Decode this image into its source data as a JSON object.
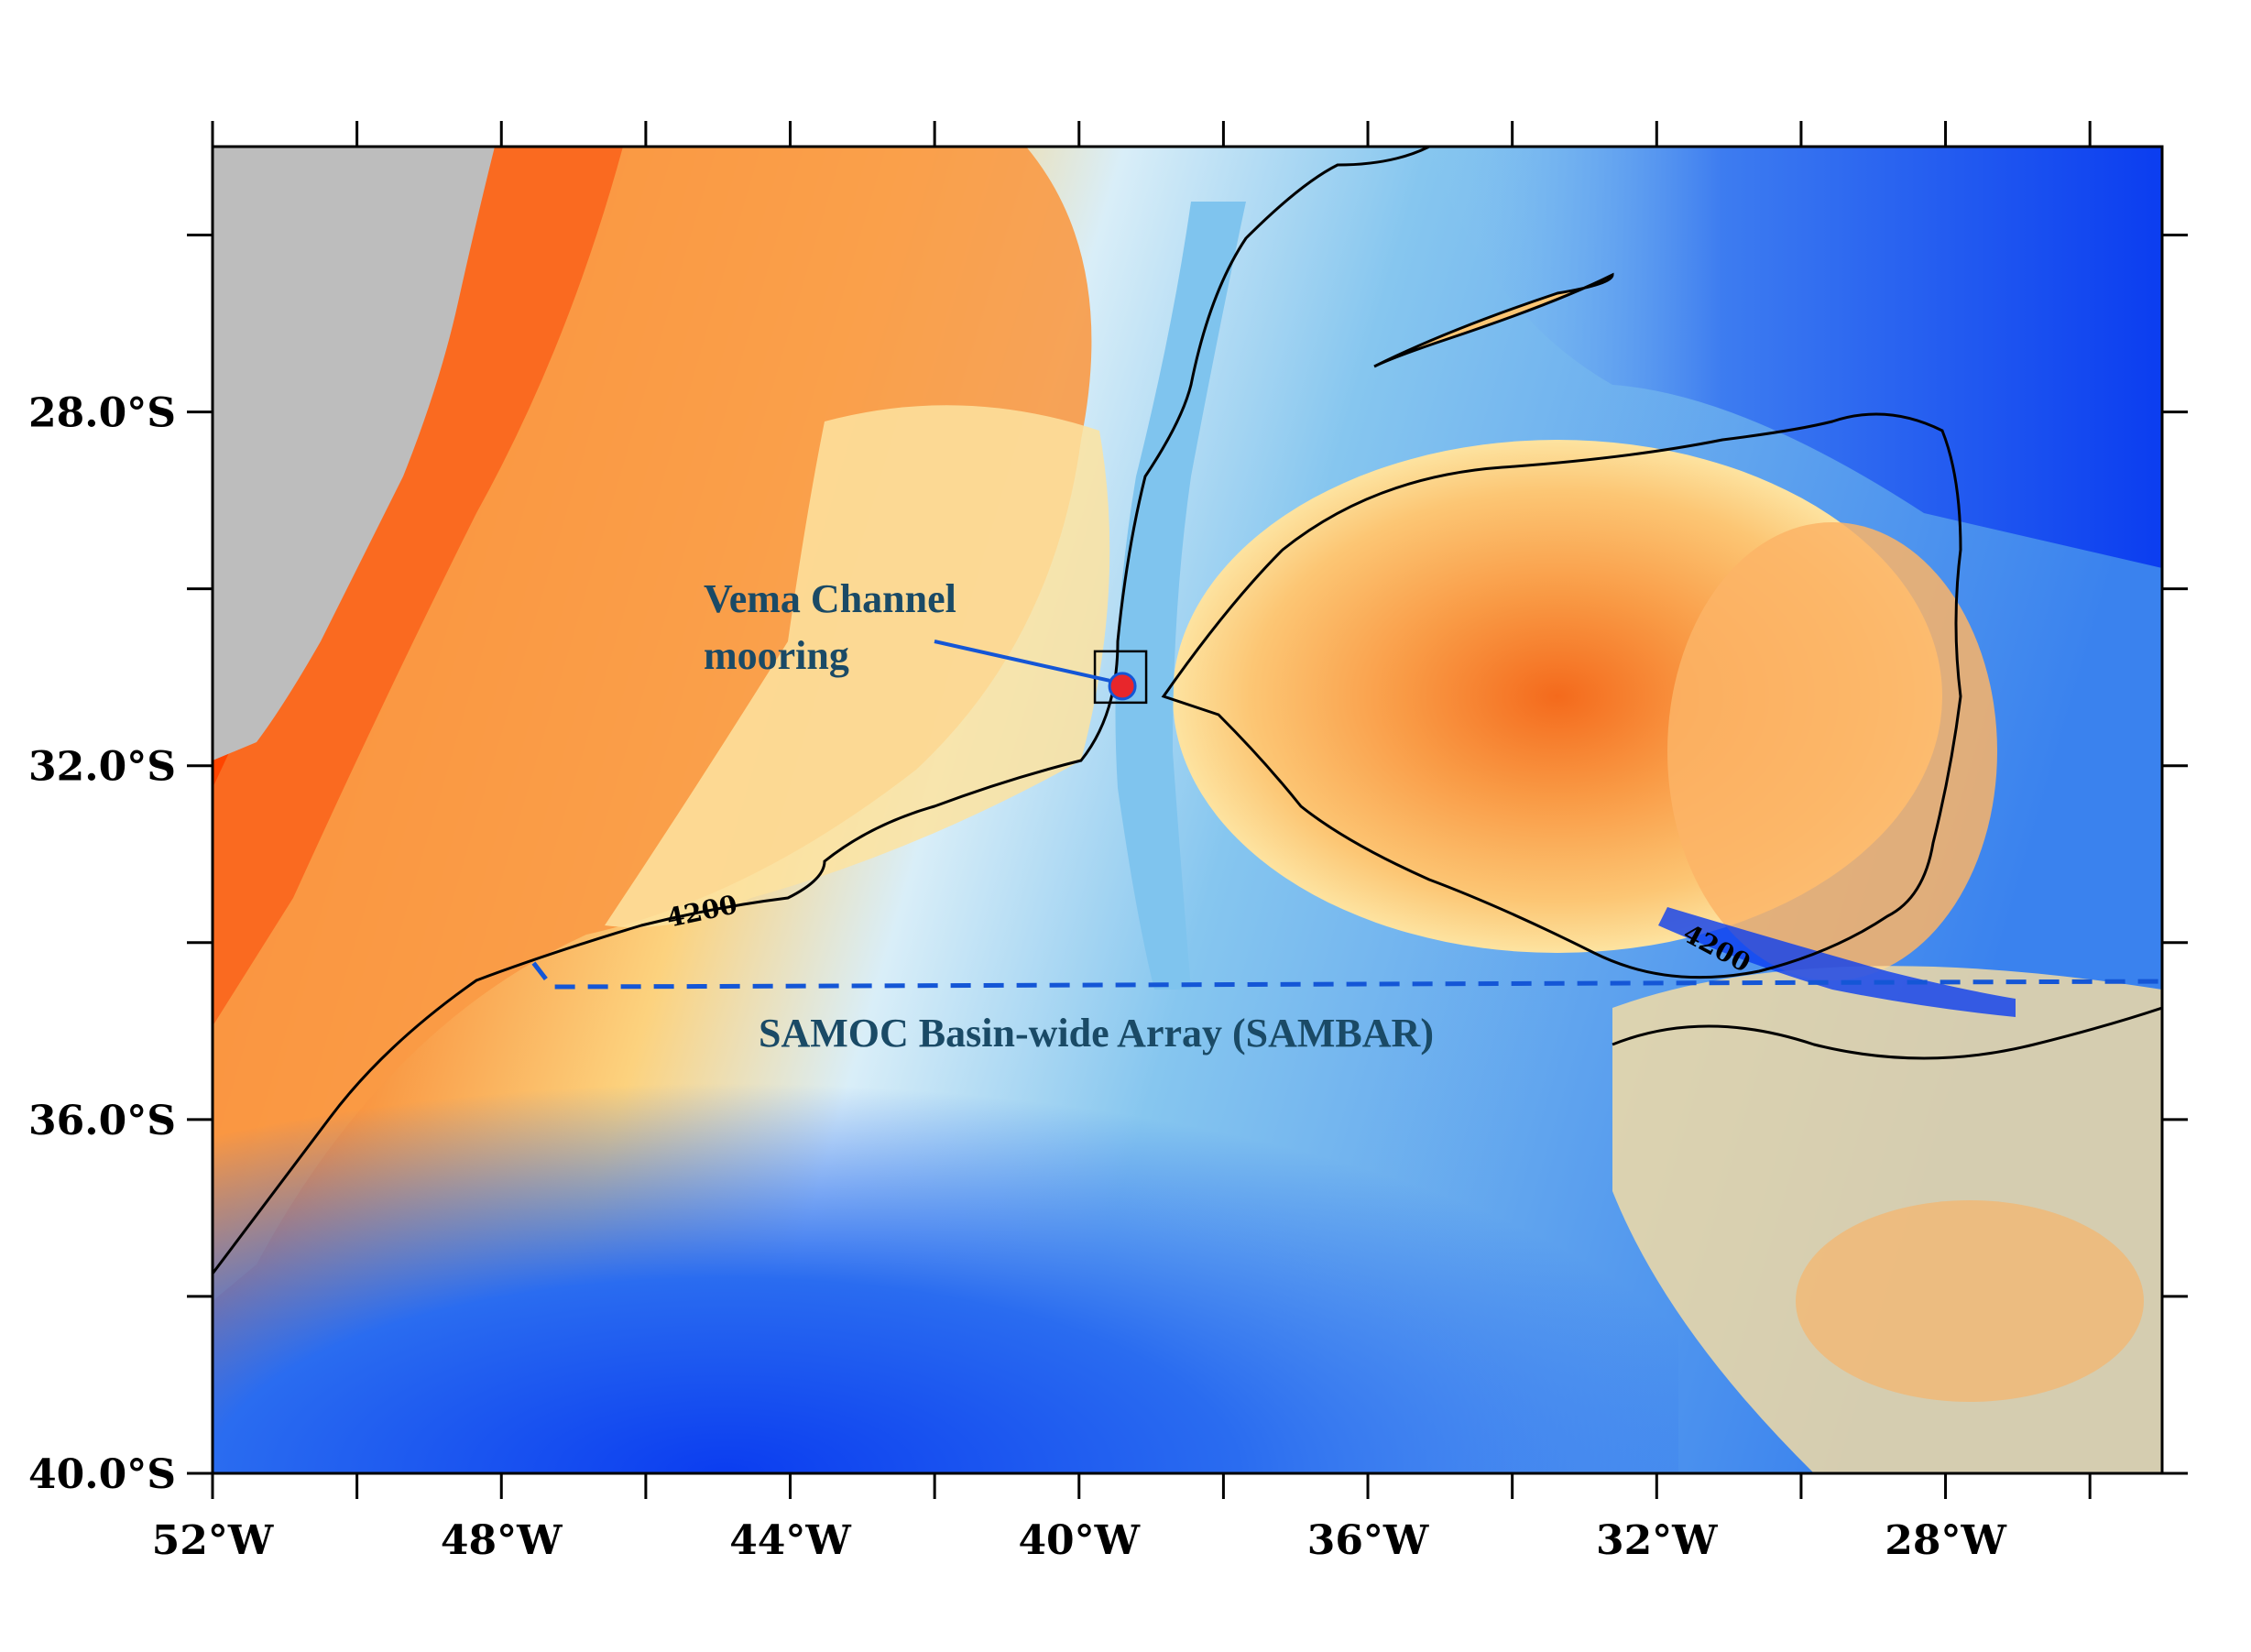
{
  "map": {
    "x_axis": {
      "ticks_deg": [
        -52,
        -48,
        -44,
        -40,
        -36,
        -32,
        -28
      ],
      "labels": [
        "52°W",
        "48°W",
        "44°W",
        "40°W",
        "36°W",
        "32°W",
        "28°W"
      ],
      "range_deg": [
        -52,
        -25
      ]
    },
    "y_axis": {
      "ticks_deg": [
        -28,
        -32,
        -36,
        -40
      ],
      "labels": [
        "28.0°S",
        "32.0°S",
        "36.0°S",
        "40.0°S"
      ],
      "range_deg": [
        -25,
        -40
      ]
    },
    "contours": [
      {
        "label": "4200"
      },
      {
        "label": "4200"
      }
    ],
    "annotations": {
      "mooring_label_line1": "Vema Channel",
      "mooring_label_line2": "mooring",
      "array_label": "SAMOC Basin-wide Array (SAMBAR)"
    },
    "mooring": {
      "lon": -39.4,
      "lat": -31.1
    },
    "array_line": {
      "lat": -34.5,
      "lon_start": -47.3,
      "lon_end": -25
    },
    "colors": {
      "land": "#bdbdbd",
      "shallow": "#ff4500",
      "mid": "#fbad5e",
      "light": "#fef6c8",
      "deep": "#7fc4ee",
      "deepest": "#0b3df0",
      "array_line": "#1456d6",
      "mooring": "#e8262b",
      "pointer": "#1456d6"
    }
  }
}
